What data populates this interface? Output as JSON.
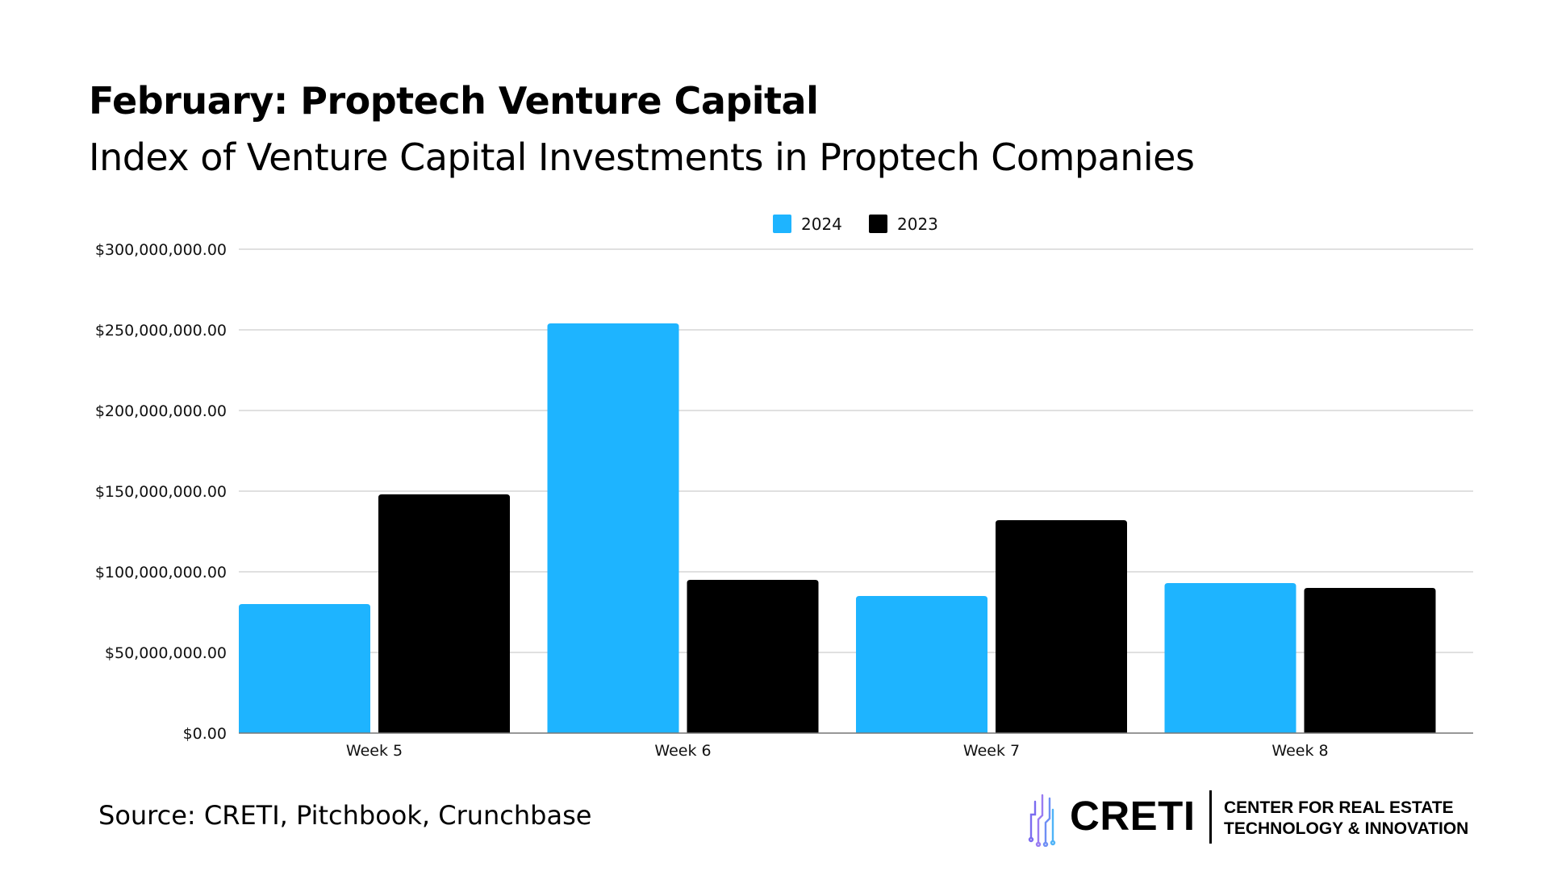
{
  "header": {
    "title": "February: Proptech Venture Capital",
    "subtitle": "Index of Venture Capital Investments in Proptech Companies"
  },
  "chart_data": {
    "type": "bar",
    "title": "February: Proptech Venture Capital",
    "subtitle": "Index of Venture Capital Investments in Proptech Companies",
    "xlabel": "",
    "ylabel": "",
    "categories": [
      "Week 5",
      "Week 6",
      "Week 7",
      "Week 8"
    ],
    "series": [
      {
        "name": "2024",
        "color": "#1EB4FF",
        "values": [
          80000000,
          254000000,
          85000000,
          93000000
        ]
      },
      {
        "name": "2023",
        "color": "#000000",
        "values": [
          148000000,
          95000000,
          132000000,
          90000000
        ]
      }
    ],
    "ylim": [
      0,
      300000000
    ],
    "yticks": [
      0,
      50000000,
      100000000,
      150000000,
      200000000,
      250000000,
      300000000
    ],
    "ytick_labels": [
      "$0.00",
      "$50,000,000.00",
      "$100,000,000.00",
      "$150,000,000.00",
      "$200,000,000.00",
      "$250,000,000.00",
      "$300,000,000.00"
    ],
    "grid": true,
    "legend_position": "top-center"
  },
  "footer": {
    "source": "Source: CRETI, Pitchbook, Crunchbase"
  },
  "logo": {
    "icon": "building-circuit-icon",
    "wordmark": "CRETI",
    "line1": "CENTER FOR REAL ESTATE",
    "line2": "TECHNOLOGY & INNOVATION"
  }
}
